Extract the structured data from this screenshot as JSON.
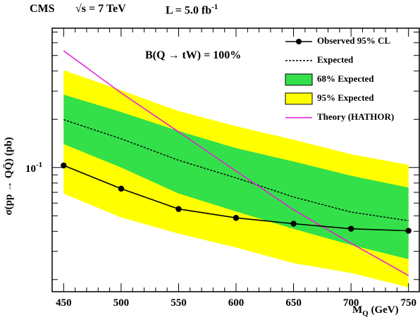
{
  "header": {
    "experiment": "CMS",
    "energy": "√s = 7 TeV",
    "lumi": "L = 5.0 fb",
    "lumi_exp": "-1"
  },
  "annotation": "B(Q → tW) = 100%",
  "chart_data": {
    "type": "line",
    "xlabel": "M",
    "xlabel_sub": "Q",
    "xlabel_unit": " (GeV)",
    "ylabel": "σ(pp → QQ̄) (pb)",
    "xlim": [
      440,
      760
    ],
    "ylim": [
      0.0168,
      0.74
    ],
    "y_scale": "log",
    "x_ticks": [
      450,
      500,
      550,
      600,
      650,
      700,
      750
    ],
    "x_tick_labels": [
      "450",
      "500",
      "550",
      "600",
      "650",
      "700",
      "750"
    ],
    "y_tick_main": {
      "value": 0.1,
      "base": "10",
      "exp": "-1"
    },
    "grid": false,
    "legend_position": "top-right",
    "legend": [
      {
        "key": "observed",
        "label": "Observed 95% CL"
      },
      {
        "key": "expected",
        "label": "Expected"
      },
      {
        "key": "band68",
        "label": "68% Expected"
      },
      {
        "key": "band95",
        "label": "95% Expected"
      },
      {
        "key": "theory",
        "label": "Theory (HATHOR)"
      }
    ],
    "x": [
      450,
      500,
      550,
      600,
      650,
      700,
      750
    ],
    "series": [
      {
        "key": "observed",
        "values": [
          0.103,
          0.0738,
          0.0551,
          0.0485,
          0.0446,
          0.0415,
          0.0403
        ],
        "color": "#000000"
      },
      {
        "key": "expected",
        "values": [
          0.199,
          0.151,
          0.111,
          0.0861,
          0.0655,
          0.0527,
          0.0466
        ],
        "color": "#000000"
      },
      {
        "key": "band68_low",
        "values": [
          0.14,
          0.1,
          0.0689,
          0.0532,
          0.0414,
          0.0329,
          0.0268
        ]
      },
      {
        "key": "band68_high",
        "values": [
          0.285,
          0.222,
          0.169,
          0.132,
          0.109,
          0.0889,
          0.075
        ]
      },
      {
        "key": "band95_low",
        "values": [
          0.0687,
          0.0488,
          0.0387,
          0.0317,
          0.0253,
          0.022,
          0.0179
        ]
      },
      {
        "key": "band95_high",
        "values": [
          0.405,
          0.303,
          0.225,
          0.181,
          0.149,
          0.121,
          0.104
        ]
      },
      {
        "key": "theory",
        "values": [
          0.535,
          0.292,
          0.167,
          0.0949,
          0.0545,
          0.0337,
          0.0212
        ],
        "color": "#e81ad8"
      }
    ],
    "colors": {
      "band68": "#33e04a",
      "band95": "#ffff00",
      "theory": "#e81ad8",
      "line": "#000000"
    }
  }
}
